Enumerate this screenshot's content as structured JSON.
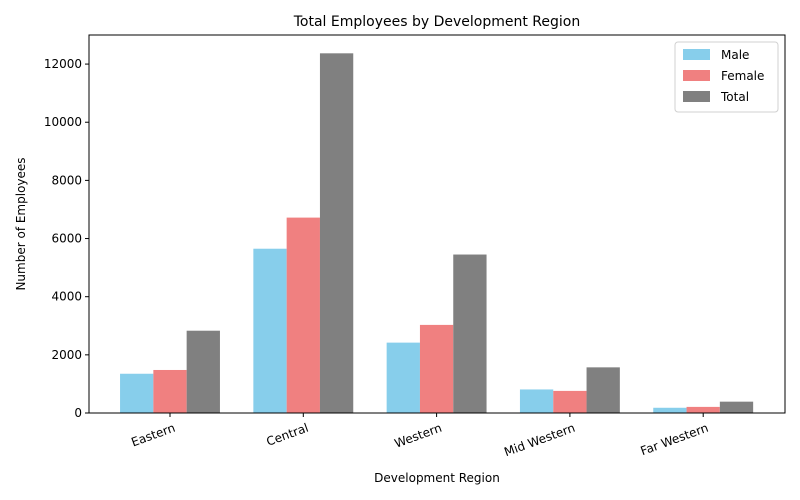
{
  "chart_data": {
    "type": "bar",
    "title": "Total Employees by Development Region",
    "xlabel": "Development Region",
    "ylabel": "Number of Employees",
    "categories": [
      "Eastern",
      "Central",
      "Western",
      "Mid Western",
      "Far Western"
    ],
    "series": [
      {
        "name": "Male",
        "color": "#87CEEB",
        "values": [
          1350,
          5650,
          2420,
          810,
          180
        ]
      },
      {
        "name": "Female",
        "color": "#F08080",
        "values": [
          1480,
          6720,
          3030,
          760,
          210
        ]
      },
      {
        "name": "Total",
        "color": "#808080",
        "values": [
          2830,
          12370,
          5450,
          1570,
          390
        ]
      }
    ],
    "ylim": [
      0,
      13000
    ],
    "yticks": [
      0,
      2000,
      4000,
      6000,
      8000,
      10000,
      12000
    ],
    "grid": false,
    "legend": "top-right"
  }
}
